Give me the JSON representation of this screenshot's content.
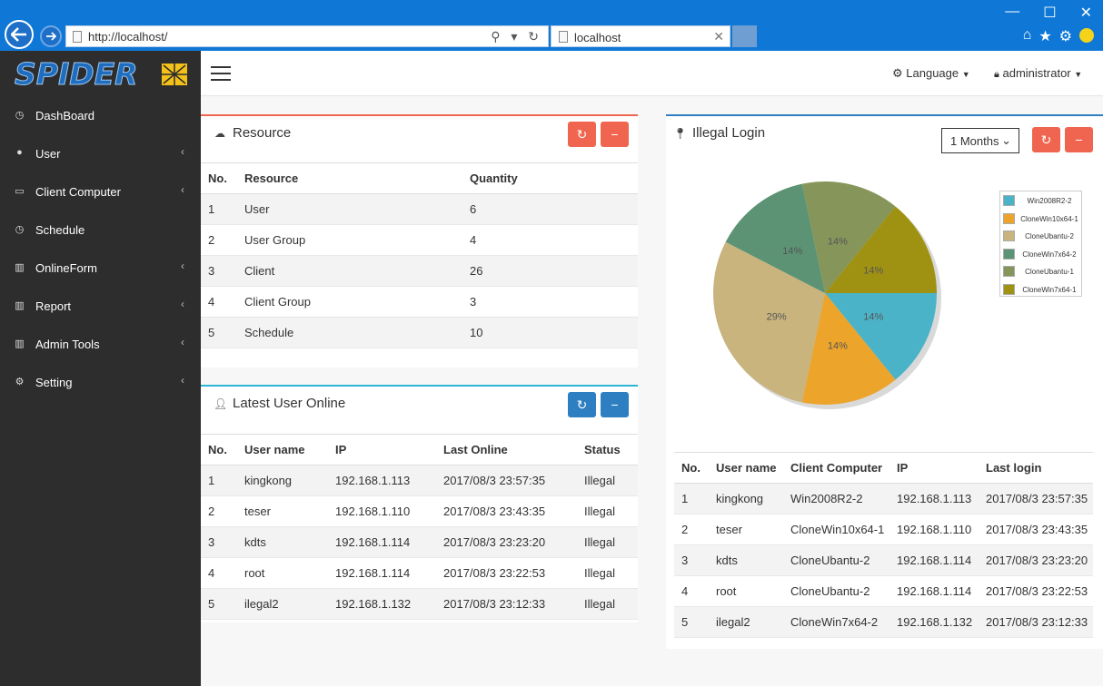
{
  "browser": {
    "address": "http://localhost/",
    "tab_title": "localhost"
  },
  "sidebar": {
    "logo_text": "SPIDER",
    "items": [
      {
        "label": "DashBoard",
        "icon": "dashboard-icon",
        "has_submenu": false
      },
      {
        "label": "User",
        "icon": "user-icon",
        "has_submenu": true
      },
      {
        "label": "Client Computer",
        "icon": "laptop-icon",
        "has_submenu": true
      },
      {
        "label": "Schedule",
        "icon": "clock-icon",
        "has_submenu": false
      },
      {
        "label": "OnlineForm",
        "icon": "bar-chart-icon",
        "has_submenu": true
      },
      {
        "label": "Report",
        "icon": "bar-chart-icon",
        "has_submenu": true
      },
      {
        "label": "Admin Tools",
        "icon": "bar-chart-icon",
        "has_submenu": true
      },
      {
        "label": "Setting",
        "icon": "cogs-icon",
        "has_submenu": true
      }
    ]
  },
  "topbar": {
    "language_label": "Language",
    "user_label": "administrator"
  },
  "resource_panel": {
    "title": "Resource",
    "accent": "#f0654f",
    "headers": [
      "No.",
      "Resource",
      "Quantity"
    ],
    "rows": [
      [
        "1",
        "User",
        "6"
      ],
      [
        "2",
        "User Group",
        "4"
      ],
      [
        "3",
        "Client",
        "26"
      ],
      [
        "4",
        "Client Group",
        "3"
      ],
      [
        "5",
        "Schedule",
        "10"
      ]
    ]
  },
  "online_panel": {
    "title": "Latest User Online",
    "accent": "#2bb5d4",
    "headers": [
      "No.",
      "User name",
      "IP",
      "Last Online",
      "Status"
    ],
    "rows": [
      [
        "1",
        "kingkong",
        "192.168.1.113",
        "2017/08/3 23:57:35",
        "Illegal"
      ],
      [
        "2",
        "teser",
        "192.168.1.110",
        "2017/08/3 23:43:35",
        "Illegal"
      ],
      [
        "3",
        "kdts",
        "192.168.1.114",
        "2017/08/3 23:23:20",
        "Illegal"
      ],
      [
        "4",
        "root",
        "192.168.1.114",
        "2017/08/3 23:22:53",
        "Illegal"
      ],
      [
        "5",
        "ilegal2",
        "192.168.1.132",
        "2017/08/3 23:12:33",
        "Illegal"
      ]
    ]
  },
  "illegal_panel": {
    "title": "Illegal Login",
    "accent": "#2e7fc1",
    "period_select": "1 Months",
    "headers": [
      "No.",
      "User name",
      "Client Computer",
      "IP",
      "Last login"
    ],
    "rows": [
      [
        "1",
        "kingkong",
        "Win2008R2-2",
        "192.168.1.113",
        "2017/08/3 23:57:35"
      ],
      [
        "2",
        "teser",
        "CloneWin10x64-1",
        "192.168.1.110",
        "2017/08/3 23:43:35"
      ],
      [
        "3",
        "kdts",
        "CloneUbantu-2",
        "192.168.1.114",
        "2017/08/3 23:23:20"
      ],
      [
        "4",
        "root",
        "CloneUbantu-2",
        "192.168.1.114",
        "2017/08/3 23:22:53"
      ],
      [
        "5",
        "ilegal2",
        "CloneWin7x64-2",
        "192.168.1.132",
        "2017/08/3 23:12:33"
      ]
    ]
  },
  "chart_data": {
    "type": "pie",
    "legend_position": "right",
    "series": [
      {
        "name": "Win2008R2-2",
        "value": 14,
        "label": "14%",
        "color": "#4bb3c7"
      },
      {
        "name": "CloneWin10x64-1",
        "value": 14,
        "label": "14%",
        "color": "#eca42b"
      },
      {
        "name": "CloneUbantu-2",
        "value": 29,
        "label": "29%",
        "color": "#c9b47e"
      },
      {
        "name": "CloneWin7x64-2",
        "value": 14,
        "label": "14%",
        "color": "#5b9374"
      },
      {
        "name": "CloneUbantu-1",
        "value": 14,
        "label": "14%",
        "color": "#86955a"
      },
      {
        "name": "CloneWin7x64-1",
        "value": 14,
        "label": "14%",
        "color": "#9f9213"
      }
    ]
  }
}
